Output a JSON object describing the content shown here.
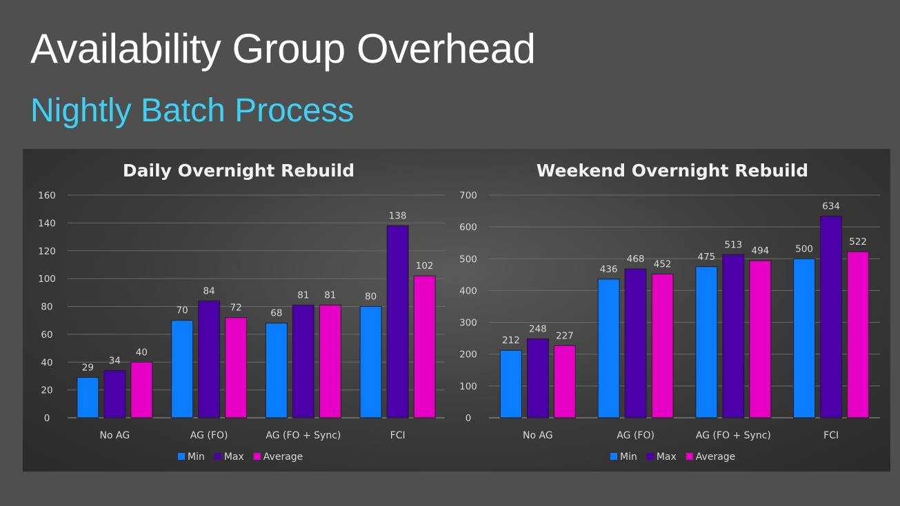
{
  "slide": {
    "title": "Availability Group Overhead",
    "subtitle": "Nightly Batch Process"
  },
  "colors": {
    "Min": "#0a7cff",
    "Max": "#4b00a8",
    "Average": "#e600c4",
    "gridline": "#6b6b6b"
  },
  "chart_data": [
    {
      "type": "bar",
      "title": "Daily Overnight Rebuild",
      "categories": [
        "No AG",
        "AG (FO)",
        "AG (FO + Sync)",
        "FCI"
      ],
      "series": [
        {
          "name": "Min",
          "values": [
            29,
            70,
            68,
            80
          ]
        },
        {
          "name": "Max",
          "values": [
            34,
            84,
            81,
            138
          ]
        },
        {
          "name": "Average",
          "values": [
            40,
            72,
            81,
            102
          ]
        }
      ],
      "ylim": [
        0,
        160
      ],
      "yticks": [
        0,
        20,
        40,
        60,
        80,
        100,
        120,
        140,
        160
      ],
      "xlabel": "",
      "ylabel": "",
      "grid": true,
      "legend": "bottom"
    },
    {
      "type": "bar",
      "title": "Weekend Overnight Rebuild",
      "categories": [
        "No AG",
        "AG (FO)",
        "AG (FO + Sync)",
        "FCI"
      ],
      "series": [
        {
          "name": "Min",
          "values": [
            212,
            436,
            475,
            500
          ]
        },
        {
          "name": "Max",
          "values": [
            248,
            468,
            513,
            634
          ]
        },
        {
          "name": "Average",
          "values": [
            227,
            452,
            494,
            522
          ]
        }
      ],
      "ylim": [
        0,
        700
      ],
      "yticks": [
        0,
        100,
        200,
        300,
        400,
        500,
        600,
        700
      ],
      "xlabel": "",
      "ylabel": "",
      "grid": true,
      "legend": "bottom"
    }
  ]
}
